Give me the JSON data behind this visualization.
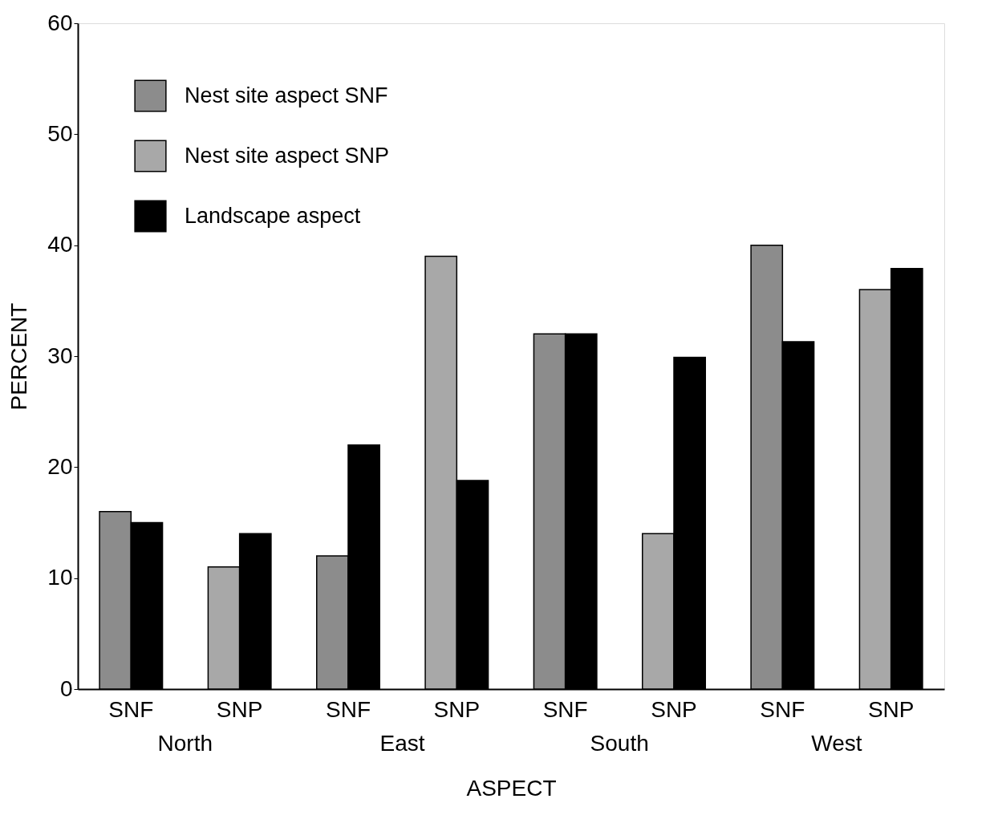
{
  "chart_data": {
    "type": "bar",
    "xlabel": "ASPECT",
    "ylabel": "PERCENT",
    "categories": [
      "SNF",
      "SNP",
      "SNF",
      "SNP",
      "SNF",
      "SNP",
      "SNF",
      "SNP"
    ],
    "series": [
      {
        "name": "Nest site aspect SNF",
        "color": "#8c8c8c",
        "values": [
          16,
          null,
          12,
          null,
          32,
          null,
          40,
          null
        ]
      },
      {
        "name": "Nest site aspect SNP",
        "color": "#a8a8a8",
        "values": [
          null,
          11,
          null,
          39,
          null,
          14,
          null,
          36
        ]
      },
      {
        "name": "Landscape aspect",
        "color": "#000000",
        "values": [
          15,
          14,
          22,
          18.8,
          32,
          29.9,
          31.3,
          37.9
        ]
      }
    ],
    "annotations": [
      "North",
      "East",
      "South",
      "West"
    ],
    "ylim": [
      0,
      60
    ],
    "yticks": [
      0,
      10,
      20,
      30,
      40,
      50,
      60
    ],
    "grid": false,
    "legend": "top left"
  }
}
